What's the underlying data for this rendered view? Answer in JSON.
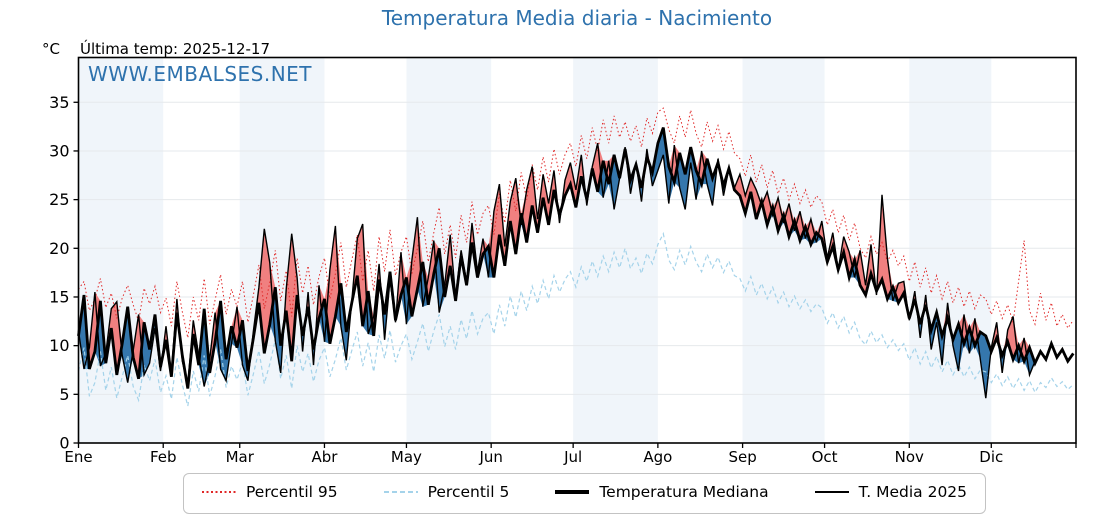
{
  "title": "Temperatura Media diaria - Nacimiento",
  "y_unit": "°C",
  "last_temp_label": "Última temp: 2025-12-17",
  "watermark": "WWW.EMBALSES.NET",
  "colors": {
    "title_blue": "#2e72ad",
    "band_light": "#f0f5fa",
    "grid": "#e6e9ec",
    "fill_above": "#f08080",
    "fill_below": "#3577ad",
    "p95_red": "#e02828",
    "p5_lightblue": "#a5d3ea",
    "line_black": "#000000"
  },
  "legend": {
    "items": [
      {
        "label": "Percentil 95",
        "style": "dotted-red"
      },
      {
        "label": "Percentil 5",
        "style": "dashed-lightblue"
      },
      {
        "label": "Temperatura Mediana",
        "style": "thick-black"
      },
      {
        "label": "T. Media 2025",
        "style": "thin-black"
      }
    ]
  },
  "chart_data": {
    "type": "line",
    "title": "Temperatura Media diaria - Nacimiento",
    "xlabel": "",
    "ylabel": "°C",
    "ylim": [
      0,
      39.6
    ],
    "yticks": [
      0,
      5,
      10,
      15,
      20,
      25,
      30,
      35
    ],
    "grid": "horizontal",
    "legend_position": "bottom",
    "x_months": [
      "Ene",
      "Feb",
      "Mar",
      "Abr",
      "May",
      "Jun",
      "Jul",
      "Ago",
      "Sep",
      "Oct",
      "Nov",
      "Dic"
    ],
    "month_start_days": [
      0,
      31,
      59,
      90,
      120,
      151,
      181,
      212,
      243,
      273,
      304,
      334
    ],
    "days_in_year": 365,
    "x_step_days": 2,
    "shaded_month_indices": [
      0,
      2,
      4,
      6,
      8,
      10
    ],
    "fills": {
      "between": [
        "T. Media 2025",
        "Temperatura Mediana"
      ],
      "above_color": "#f08080",
      "below_color": "#3577ad"
    },
    "series": [
      {
        "name": "Percentil 95",
        "style": "dotted",
        "color": "#e02828",
        "width": 1,
        "values": [
          15.8,
          16.6,
          13.6,
          14.8,
          16.9,
          13.9,
          15.4,
          12.8,
          14.9,
          16.2,
          14.2,
          12.5,
          15.9,
          14.3,
          16.1,
          13.4,
          14.9,
          12.0,
          16.6,
          13.5,
          10.8,
          15.0,
          12.6,
          16.9,
          12.2,
          14.7,
          17.3,
          13.2,
          15.8,
          14.0,
          16.6,
          12.4,
          15.2,
          18.3,
          13.8,
          16.5,
          19.8,
          14.6,
          17.7,
          13.0,
          19.0,
          15.4,
          18.2,
          14.2,
          17.1,
          19.0,
          14.8,
          17.4,
          20.6,
          16.0,
          18.8,
          21.4,
          16.6,
          19.8,
          15.6,
          21.2,
          17.6,
          21.9,
          17.2,
          19.6,
          21.2,
          17.4,
          20.0,
          22.8,
          18.6,
          21.6,
          24.2,
          19.4,
          22.4,
          19.0,
          23.4,
          20.6,
          24.8,
          21.4,
          23.6,
          24.4,
          21.4,
          25.6,
          22.6,
          27.0,
          23.8,
          27.8,
          25.0,
          28.6,
          26.0,
          29.4,
          26.8,
          30.2,
          27.6,
          29.6,
          30.8,
          28.4,
          31.6,
          29.2,
          32.4,
          30.0,
          33.2,
          30.8,
          33.6,
          31.4,
          33.0,
          31.0,
          32.6,
          30.4,
          33.4,
          31.8,
          34.0,
          34.4,
          32.2,
          30.8,
          33.6,
          31.4,
          34.2,
          31.8,
          30.4,
          33.0,
          31.0,
          32.6,
          30.2,
          32.0,
          29.8,
          29.2,
          27.4,
          29.6,
          26.8,
          28.6,
          26.2,
          28.0,
          25.6,
          27.2,
          25.0,
          26.6,
          24.6,
          26.0,
          24.2,
          25.4,
          24.8,
          22.4,
          24.0,
          21.6,
          23.4,
          20.8,
          22.6,
          20.0,
          19.0,
          21.2,
          19.4,
          20.6,
          18.6,
          19.8,
          18.2,
          19.2,
          16.6,
          18.6,
          16.0,
          18.0,
          15.4,
          17.2,
          14.8,
          16.6,
          14.4,
          16.0,
          14.0,
          15.6,
          13.8,
          15.2,
          14.8,
          13.2,
          14.6,
          12.8,
          14.2,
          12.4,
          16.6,
          20.8,
          13.6,
          12.2,
          15.4,
          12.6,
          14.4,
          12.0,
          13.2,
          11.8,
          12.6
        ]
      },
      {
        "name": "Percentil 5",
        "style": "dashed",
        "color": "#a5d3ea",
        "width": 1.2,
        "values": [
          7.4,
          9.8,
          4.8,
          6.2,
          9.4,
          5.4,
          7.8,
          4.6,
          6.8,
          9.0,
          5.8,
          4.4,
          8.0,
          6.4,
          8.6,
          5.2,
          6.9,
          4.5,
          8.8,
          6.0,
          3.8,
          7.4,
          5.3,
          9.0,
          4.8,
          6.9,
          9.6,
          5.7,
          7.9,
          6.5,
          8.3,
          4.9,
          7.1,
          9.5,
          6.1,
          8.1,
          10.6,
          6.6,
          9.0,
          5.6,
          10.0,
          7.3,
          9.2,
          6.3,
          8.5,
          9.8,
          6.8,
          8.6,
          10.8,
          7.5,
          9.5,
          11.4,
          7.9,
          10.3,
          7.3,
          11.1,
          8.7,
          11.6,
          8.3,
          10.0,
          11.2,
          8.6,
          10.4,
          12.3,
          9.4,
          11.5,
          13.2,
          9.9,
          12.0,
          9.6,
          12.7,
          10.7,
          13.6,
          11.2,
          12.8,
          13.4,
          11.2,
          14.2,
          12.0,
          15.1,
          12.9,
          15.6,
          13.6,
          16.1,
          14.3,
          16.7,
          14.8,
          17.2,
          15.5,
          16.8,
          17.6,
          16.0,
          18.1,
          16.6,
          18.7,
          17.1,
          19.2,
          17.6,
          19.6,
          18.0,
          20.0,
          17.9,
          19.0,
          17.4,
          19.5,
          18.4,
          20.4,
          21.5,
          18.8,
          17.8,
          19.8,
          18.3,
          20.2,
          18.6,
          17.6,
          19.4,
          18.0,
          19.1,
          17.5,
          18.7,
          17.2,
          16.9,
          15.6,
          17.1,
          15.2,
          16.4,
          14.8,
          16.0,
          14.4,
          15.5,
          14.0,
          15.1,
          13.8,
          14.7,
          13.5,
          14.3,
          13.9,
          12.3,
          13.4,
          11.8,
          13.0,
          11.3,
          12.4,
          10.7,
          10.1,
          11.5,
          10.3,
          11.1,
          9.8,
          10.6,
          9.5,
          10.2,
          8.5,
          9.8,
          8.1,
          9.4,
          7.7,
          8.9,
          7.3,
          8.5,
          7.0,
          8.1,
          6.8,
          7.8,
          6.6,
          7.5,
          7.3,
          6.2,
          7.1,
          5.9,
          6.8,
          5.6,
          6.6,
          5.4,
          6.4,
          5.2,
          6.2,
          5.7,
          6.7,
          5.8,
          6.3,
          5.5,
          6.0
        ]
      },
      {
        "name": "Temperatura Mediana",
        "style": "solid",
        "color": "#000000",
        "width": 2.8,
        "values": [
          11.0,
          15.2,
          7.6,
          9.4,
          14.6,
          8.2,
          11.8,
          7.0,
          10.2,
          14.0,
          8.8,
          6.6,
          12.4,
          9.6,
          13.2,
          7.8,
          10.6,
          6.8,
          13.4,
          9.0,
          5.6,
          11.2,
          8.0,
          13.8,
          7.2,
          10.4,
          14.6,
          8.6,
          12.0,
          9.8,
          12.6,
          7.4,
          10.8,
          14.4,
          9.2,
          12.2,
          16.0,
          10.0,
          13.6,
          8.4,
          15.2,
          11.0,
          14.0,
          9.6,
          12.8,
          14.8,
          10.2,
          13.0,
          16.4,
          11.4,
          14.4,
          17.2,
          12.0,
          15.6,
          11.0,
          16.8,
          13.2,
          17.6,
          12.6,
          15.2,
          17.0,
          13.0,
          15.8,
          18.6,
          14.2,
          17.4,
          20.0,
          15.0,
          18.2,
          14.6,
          19.2,
          16.2,
          20.6,
          17.0,
          19.4,
          20.2,
          17.0,
          21.4,
          18.2,
          22.8,
          19.4,
          23.6,
          20.6,
          24.4,
          21.6,
          25.2,
          22.4,
          26.0,
          23.4,
          25.4,
          26.6,
          24.2,
          27.4,
          25.0,
          28.2,
          25.8,
          29.0,
          26.6,
          29.6,
          27.2,
          30.2,
          27.0,
          28.6,
          26.2,
          29.4,
          27.8,
          30.8,
          32.4,
          28.4,
          26.8,
          29.8,
          27.6,
          30.4,
          28.0,
          26.6,
          29.2,
          27.2,
          28.8,
          26.4,
          28.2,
          26.0,
          25.4,
          23.6,
          25.8,
          23.0,
          24.8,
          22.4,
          24.2,
          21.8,
          23.4,
          21.2,
          22.8,
          20.8,
          22.2,
          20.4,
          21.6,
          21.0,
          18.6,
          20.2,
          17.8,
          19.6,
          17.0,
          18.8,
          16.2,
          15.2,
          17.4,
          15.6,
          16.8,
          14.8,
          16.0,
          14.4,
          15.4,
          12.8,
          14.8,
          12.2,
          14.2,
          11.6,
          13.4,
          11.0,
          12.8,
          10.6,
          12.2,
          10.2,
          11.8,
          10.0,
          11.4,
          11.0,
          9.4,
          10.8,
          9.0,
          10.4,
          8.6,
          10.0,
          8.4,
          9.8,
          8.2,
          9.4,
          8.6,
          10.2,
          8.8,
          9.6,
          8.4,
          9.2
        ]
      },
      {
        "name": "T. Media 2025",
        "style": "solid",
        "color": "#000000",
        "width": 1.4,
        "values": [
          11.5,
          7.6,
          9.8,
          15.5,
          7.9,
          9.2,
          13.8,
          14.5,
          9.0,
          6.2,
          9.5,
          13.2,
          7.0,
          8.2,
          11.8,
          7.4,
          12.0,
          7.2,
          14.8,
          8.4,
          6.0,
          12.6,
          9.0,
          5.8,
          8.6,
          13.4,
          7.6,
          6.4,
          10.2,
          14.0,
          8.0,
          6.4,
          11.5,
          16.0,
          22.0,
          18.5,
          10.5,
          7.2,
          15.8,
          21.5,
          17.0,
          9.4,
          15.5,
          8.0,
          16.2,
          10.4,
          17.8,
          22.3,
          12.0,
          8.5,
          14.6,
          21.0,
          22.5,
          11.2,
          13.0,
          18.4,
          10.6,
          16.8,
          12.4,
          19.6,
          12.2,
          18.8,
          23.2,
          14.0,
          17.0,
          20.8,
          13.4,
          16.2,
          21.4,
          15.0,
          19.8,
          16.6,
          22.6,
          17.6,
          21.0,
          17.0,
          23.8,
          26.6,
          20.2,
          24.8,
          27.2,
          22.4,
          26.0,
          28.4,
          23.0,
          27.6,
          24.6,
          28.0,
          22.6,
          27.0,
          28.8,
          26.0,
          29.6,
          24.4,
          28.4,
          30.8,
          25.2,
          29.0,
          24.0,
          27.2,
          30.4,
          25.6,
          28.8,
          24.8,
          30.2,
          26.4,
          28.0,
          29.6,
          24.6,
          30.6,
          26.2,
          24.0,
          28.8,
          25.0,
          30.0,
          26.6,
          24.4,
          29.2,
          25.4,
          28.2,
          26.2,
          27.6,
          25.4,
          27.2,
          26.0,
          24.4,
          25.8,
          23.4,
          25.2,
          22.6,
          24.6,
          21.8,
          23.8,
          21.0,
          23.0,
          20.6,
          22.8,
          19.0,
          21.6,
          17.8,
          21.2,
          19.6,
          17.0,
          19.8,
          16.2,
          20.4,
          15.2,
          25.5,
          19.0,
          14.6,
          16.4,
          16.6,
          12.6,
          15.6,
          10.8,
          15.2,
          9.6,
          12.4,
          8.0,
          14.4,
          10.0,
          7.4,
          13.2,
          9.2,
          12.8,
          8.6,
          4.6,
          9.8,
          12.4,
          7.2,
          11.6,
          13.0,
          8.2,
          10.8,
          7.0,
          8.4
        ]
      }
    ]
  }
}
